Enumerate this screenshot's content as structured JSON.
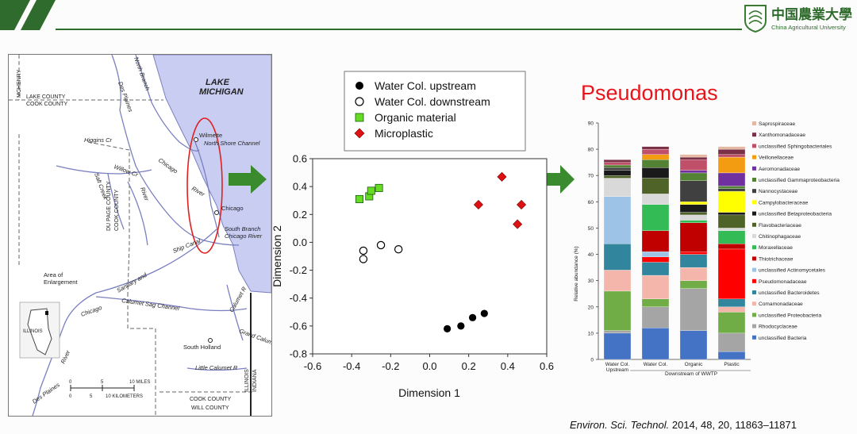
{
  "header": {
    "logo_cn": "中国農業大學",
    "logo_en": "China Agricultural University"
  },
  "map": {
    "lake_label_1": "LAKE",
    "lake_label_2": "MICHIGAN",
    "labels": {
      "mchenry": "MCHENRY",
      "lake_county": "LAKE COUNTY",
      "cook_county_top": "COOK COUNTY",
      "des_plaines_top": "Des Plaines",
      "north_branch": "North Branch",
      "higgins": "Higgins Cr",
      "willow": "Willow Cr",
      "salt_creek": "Salt Creek",
      "dupage_county": "DU PAGE COUNTY",
      "cook_county_mid": "COOK COUNTY",
      "river_word": "River",
      "chicago_river_1": "Chicago",
      "chicago_river_2": "River",
      "wilmette": "Wilmette",
      "north_shore": "North Shore Channel",
      "chicago_city": "Chicago",
      "south_branch_1": "South Branch",
      "south_branch_2": "Chicago River",
      "ship_canal": "Ship Canal",
      "sanitary": "Sanitary and",
      "area_1": "Area of",
      "area_2": "Enlargement",
      "illinois_inset": "ILLINOIS",
      "chicago_lower": "Chicago",
      "calumet_sag": "Calumet Sag Channel",
      "calumet_r": "Calumet R",
      "grand_calumet": "Grand Calumet R",
      "south_holland": "South Holland",
      "little_calumet": "Little Calumet R",
      "river_lower": "River",
      "des_plaines_bottom": "Des Plaines",
      "illinois_state": "ILLINOIS",
      "indiana_state": "INDIANA",
      "cook_county_bottom": "COOK COUNTY",
      "will_county": "WILL COUNTY",
      "scale_0a": "0",
      "scale_5a": "5",
      "scale_miles": "10 MILES",
      "scale_0b": "0",
      "scale_5b": "5",
      "scale_km": "10 KILOMETERS"
    }
  },
  "pcoa": {
    "legend": [
      "Water Col. upstream",
      "Water Col. downstream",
      "Organic material",
      "Microplastic"
    ]
  },
  "pseudomonas_title": "Pseudomonas",
  "citation": {
    "journal": "Environ. Sci. Technol.",
    "rest": " 2014, 48, 20, 11863–11871"
  },
  "chart_data": [
    {
      "type": "scatter",
      "title": "",
      "xlabel": "Dimension 1",
      "ylabel": "Dimension 2",
      "xlim": [
        -0.6,
        0.6
      ],
      "ylim": [
        -0.8,
        0.6
      ],
      "xticks": [
        "-0.6",
        "-0.4",
        "-0.2",
        "0.0",
        "0.2",
        "0.4",
        "0.6"
      ],
      "yticks": [
        "0.6",
        "0.4",
        "0.2",
        "0.0",
        "-0.2",
        "-0.4",
        "-0.6",
        "-0.8"
      ],
      "legend_position": "top",
      "series": [
        {
          "name": "Water Col. upstream",
          "marker": "circle-filled",
          "color": "#000000",
          "points": [
            [
              0.09,
              -0.62
            ],
            [
              0.16,
              -0.6
            ],
            [
              0.22,
              -0.54
            ],
            [
              0.28,
              -0.51
            ]
          ]
        },
        {
          "name": "Water Col. downstream",
          "marker": "circle-open",
          "color": "#000000",
          "points": [
            [
              -0.34,
              -0.06
            ],
            [
              -0.34,
              -0.12
            ],
            [
              -0.25,
              -0.02
            ],
            [
              -0.16,
              -0.05
            ]
          ]
        },
        {
          "name": "Organic material",
          "marker": "square",
          "color": "#66dd22",
          "points": [
            [
              -0.36,
              0.31
            ],
            [
              -0.31,
              0.33
            ],
            [
              -0.3,
              0.37
            ],
            [
              -0.26,
              0.39
            ]
          ]
        },
        {
          "name": "Microplastic",
          "marker": "diamond",
          "color": "#dd1111",
          "points": [
            [
              0.25,
              0.27
            ],
            [
              0.37,
              0.47
            ],
            [
              0.47,
              0.27
            ],
            [
              0.45,
              0.13
            ]
          ]
        }
      ]
    },
    {
      "type": "bar",
      "stacked": true,
      "ylabel": "Relative abundance (%)",
      "ylim": [
        0,
        90
      ],
      "yticks": [
        "0",
        "10",
        "20",
        "30",
        "40",
        "50",
        "60",
        "70",
        "80",
        "90"
      ],
      "categories": [
        "Water Col. Upstream",
        "Water Col.",
        "Organic",
        "Plastic"
      ],
      "group_label": "Downstream of WWTP",
      "legend_position": "right",
      "series": [
        {
          "name": "unclassified Bacteria",
          "color": "#4472c4",
          "values": [
            10,
            12,
            11,
            3
          ]
        },
        {
          "name": "Rhodocyclaceae",
          "color": "#a5a5a5",
          "values": [
            1,
            8,
            16,
            7
          ]
        },
        {
          "name": "unclassified Proteobacteria",
          "color": "#70ad47",
          "values": [
            15,
            3,
            3,
            8
          ]
        },
        {
          "name": "Comamonadaceae",
          "color": "#f4b6aa",
          "values": [
            8,
            9,
            5,
            2
          ]
        },
        {
          "name": "unclassified Bacteroidetes",
          "color": "#31859c",
          "values": [
            10,
            5,
            5,
            3
          ]
        },
        {
          "name": "Pseudomonadaceae",
          "color": "#ff0000",
          "values": [
            0,
            2,
            1,
            19
          ]
        },
        {
          "name": "unclassified Actinomycetales",
          "color": "#9dc3e6",
          "values": [
            18,
            2,
            0,
            0
          ]
        },
        {
          "name": "Thiotrichaceae",
          "color": "#c00000",
          "values": [
            0,
            8,
            11,
            2
          ]
        },
        {
          "name": "Moraxellaceae",
          "color": "#33bb55",
          "values": [
            0,
            10,
            1,
            5
          ]
        },
        {
          "name": "Chitinophagaceae",
          "color": "#d9d9d9",
          "values": [
            7,
            4,
            2,
            1
          ]
        },
        {
          "name": "Flavobacteriaceae",
          "color": "#4f6228",
          "values": [
            1,
            6,
            1,
            5
          ]
        },
        {
          "name": "unclassified Betaproteobacteria",
          "color": "#1a1a1a",
          "values": [
            2,
            4,
            3,
            1
          ]
        },
        {
          "name": "Campylobacteraceae",
          "color": "#ffff00",
          "values": [
            0,
            0,
            1,
            8
          ]
        },
        {
          "name": "Nannocystaceae",
          "color": "#404040",
          "values": [
            1,
            0,
            8,
            1
          ]
        },
        {
          "name": "unclassified Gammaproteobacteria",
          "color": "#548235",
          "values": [
            1,
            3,
            3,
            1
          ]
        },
        {
          "name": "Aeromonadaceae",
          "color": "#7030a0",
          "values": [
            0,
            0,
            1,
            5
          ]
        },
        {
          "name": "Veillonellaceae",
          "color": "#f39c12",
          "values": [
            0,
            2,
            0,
            6
          ]
        },
        {
          "name": "unclassified Sphingobacteriales",
          "color": "#c0506a",
          "values": [
            1,
            2,
            4,
            1
          ]
        },
        {
          "name": "Xanthomonadaceae",
          "color": "#7b3045",
          "values": [
            1,
            1,
            1,
            2
          ]
        },
        {
          "name": "Saprospiraceae",
          "color": "#e6b8a2",
          "values": [
            0,
            0,
            1,
            1
          ]
        }
      ]
    }
  ]
}
